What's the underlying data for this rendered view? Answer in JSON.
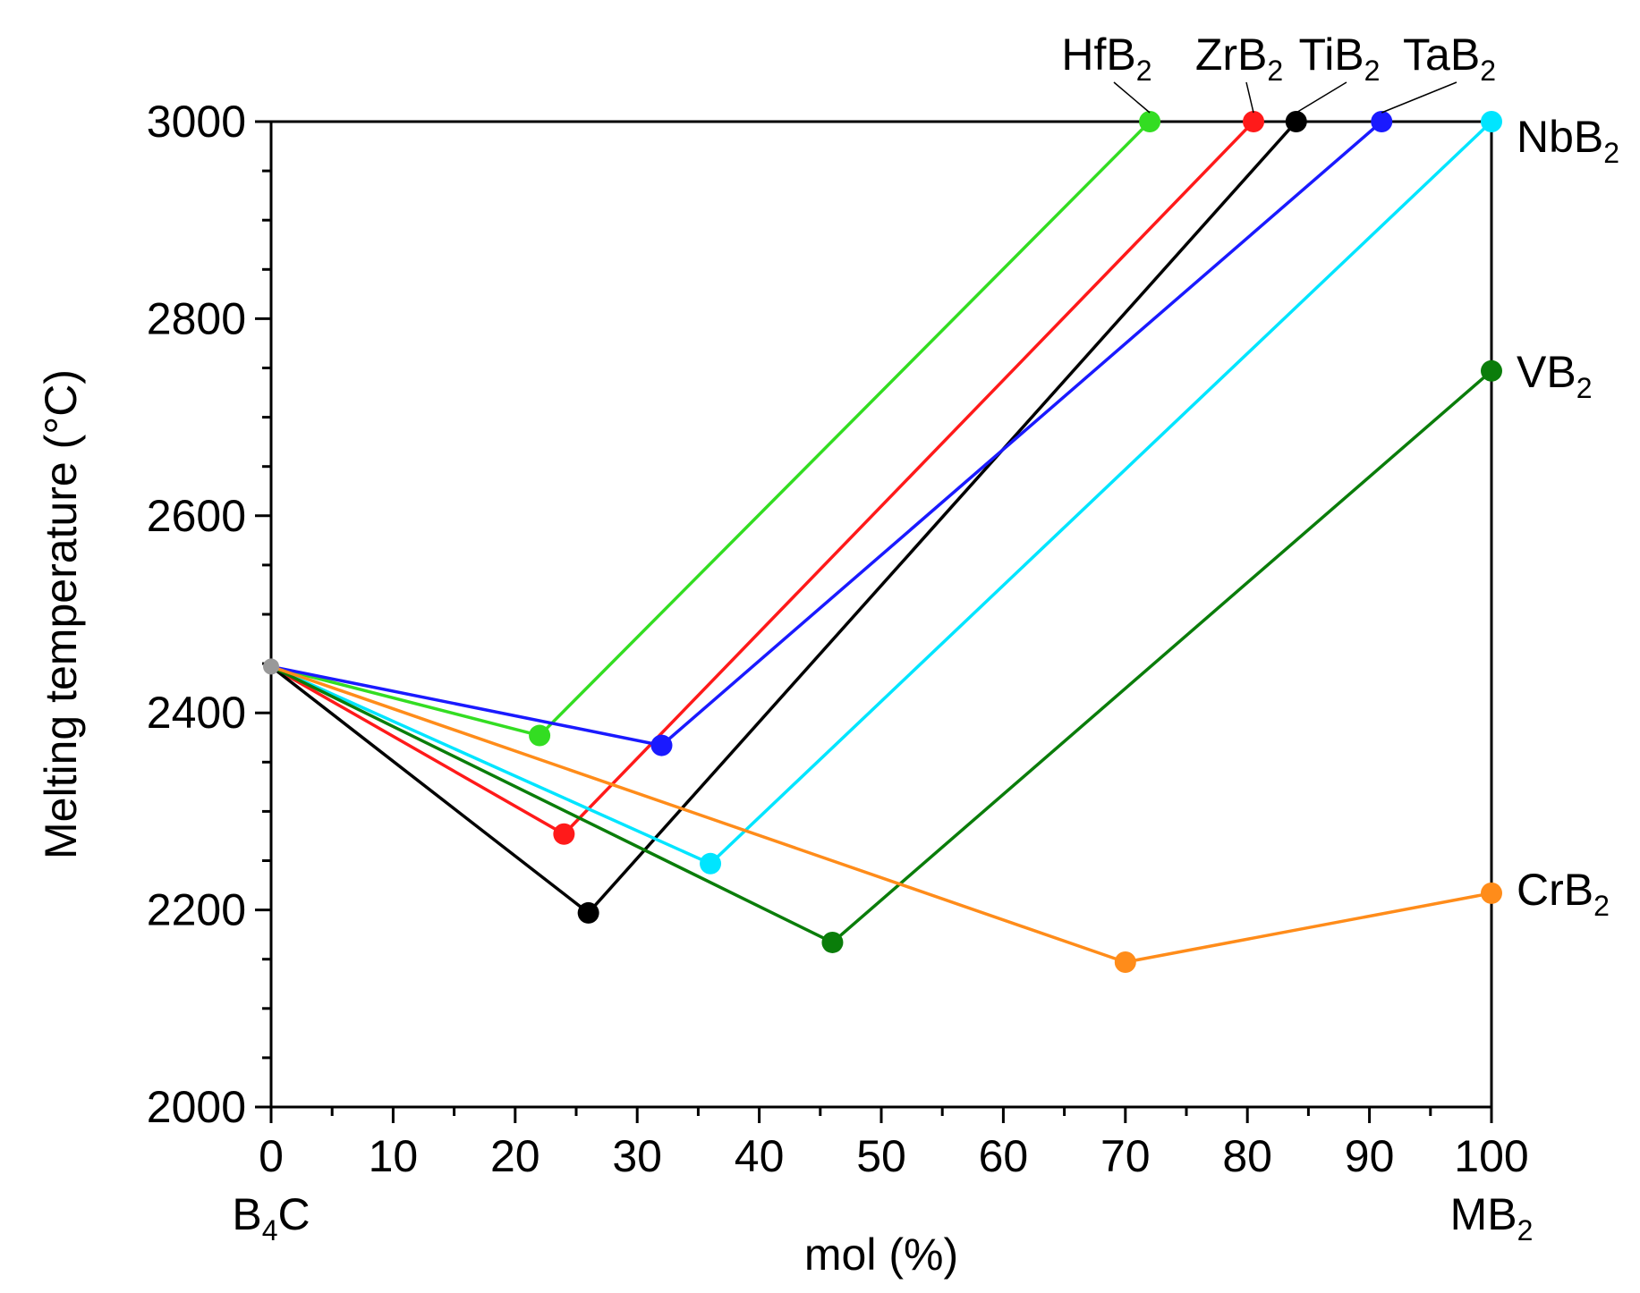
{
  "chart_data": {
    "type": "line",
    "title": "",
    "xlabel": "mol (%)",
    "ylabel": "Melting temperature (°C)",
    "x_end_labels": {
      "left": {
        "main": "B",
        "sub": "4",
        "tail": "C"
      },
      "right": {
        "main": "MB",
        "sub": "2",
        "tail": ""
      }
    },
    "xlim": [
      0,
      100
    ],
    "ylim": [
      2000,
      3000
    ],
    "x_ticks": [
      "0",
      "10",
      "20",
      "30",
      "40",
      "50",
      "60",
      "70",
      "80",
      "90",
      "100"
    ],
    "y_ticks": [
      "2000",
      "2200",
      "2400",
      "2600",
      "2800",
      "3000"
    ],
    "series": [
      {
        "name": "HfB2",
        "label_main": "HfB",
        "label_sub": "2",
        "color": "#33dd22",
        "points": [
          [
            0,
            2447
          ],
          [
            22,
            2377
          ],
          [
            72,
            3000
          ]
        ]
      },
      {
        "name": "ZrB2",
        "label_main": "ZrB",
        "label_sub": "2",
        "color": "#ff1a1a",
        "points": [
          [
            0,
            2447
          ],
          [
            24,
            2277
          ],
          [
            80.5,
            3000
          ]
        ]
      },
      {
        "name": "TiB2",
        "label_main": "TiB",
        "label_sub": "2",
        "color": "#000000",
        "points": [
          [
            0,
            2447
          ],
          [
            26,
            2197
          ],
          [
            84,
            3000
          ]
        ]
      },
      {
        "name": "TaB2",
        "label_main": "TaB",
        "label_sub": "2",
        "color": "#1a1aff",
        "points": [
          [
            0,
            2447
          ],
          [
            32,
            2367
          ],
          [
            91,
            3000
          ]
        ]
      },
      {
        "name": "NbB2",
        "label_main": "NbB",
        "label_sub": "2",
        "color": "#00e5ff",
        "points": [
          [
            0,
            2447
          ],
          [
            36,
            2247
          ],
          [
            100,
            3000
          ]
        ]
      },
      {
        "name": "VB2",
        "label_main": "VB",
        "label_sub": "2",
        "color": "#0a7d0a",
        "points": [
          [
            0,
            2447
          ],
          [
            46,
            2167
          ],
          [
            100,
            2747
          ]
        ]
      },
      {
        "name": "CrB2",
        "label_main": "CrB",
        "label_sub": "2",
        "color": "#ff8c1a",
        "points": [
          [
            0,
            2447
          ],
          [
            70,
            2147
          ],
          [
            100,
            2217
          ]
        ]
      }
    ],
    "origin_marker_color": "#999999"
  }
}
